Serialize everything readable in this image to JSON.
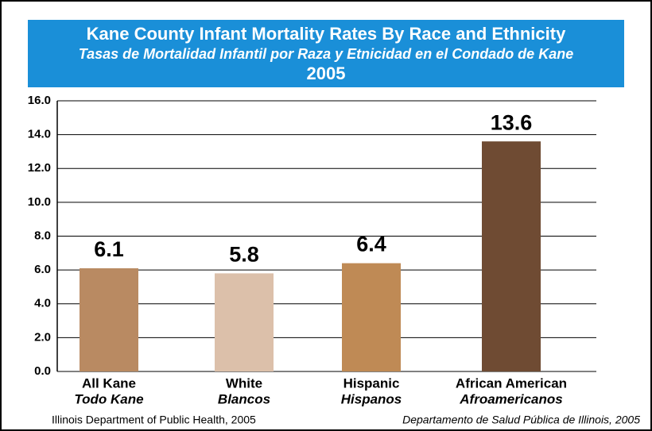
{
  "chart_data": {
    "type": "bar",
    "title": "Kane County Infant Mortality Rates By Race and Ethnicity",
    "subtitle": "Tasas de Mortalidad Infantil por Raza y Etnicidad en el Condado de Kane",
    "year": "2005",
    "categories": [
      "All Kane",
      "White",
      "Hispanic",
      "African American"
    ],
    "categories_spanish": [
      "Todo Kane",
      "Blancos",
      "Hispanos",
      "Afroamericanos"
    ],
    "values": [
      6.1,
      5.8,
      6.4,
      13.6
    ],
    "colors": [
      "#b98a62",
      "#dcc0aa",
      "#bf8a55",
      "#6f4b33"
    ],
    "ylim": [
      0,
      16
    ],
    "yticks": [
      {
        "value": 0,
        "label": "0.0"
      },
      {
        "value": 2,
        "label": "2.0"
      },
      {
        "value": 4,
        "label": "4.0"
      },
      {
        "value": 6,
        "label": "6.0"
      },
      {
        "value": 8,
        "label": "8.0"
      },
      {
        "value": 10,
        "label": "10.0"
      },
      {
        "value": 12,
        "label": "12.0"
      },
      {
        "value": 14,
        "label": "14.0"
      },
      {
        "value": 16,
        "label": "16.0"
      }
    ],
    "grid": true,
    "source_left": "Illinois Department of Public Health, 2005",
    "source_right": "Departamento de Salud Pública de Illinois, 2005"
  }
}
